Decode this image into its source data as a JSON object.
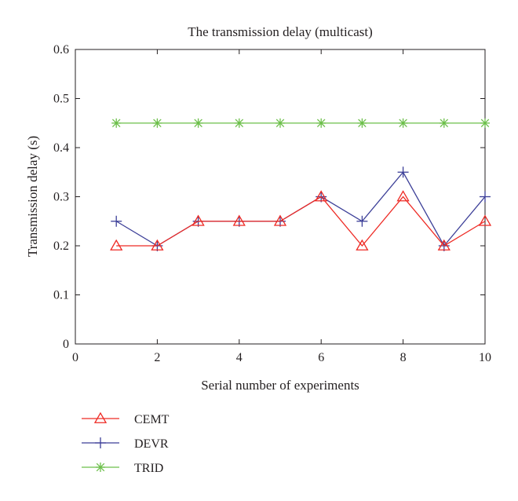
{
  "chart_data": {
    "type": "line",
    "title": "The transmission delay (multicast)",
    "xlabel": "Serial number of experiments",
    "ylabel": "Transmission delay (s)",
    "xlim": [
      0,
      10
    ],
    "ylim": [
      0,
      0.6
    ],
    "xticks": [
      0,
      2,
      4,
      6,
      8,
      10
    ],
    "xtick_labels": [
      "0",
      "2",
      "4",
      "6",
      "8",
      "10"
    ],
    "yticks": [
      0,
      0.1,
      0.2,
      0.3,
      0.4,
      0.5,
      0.6
    ],
    "ytick_labels": [
      "0",
      "0.1",
      "0.2",
      "0.3",
      "0.4",
      "0.5",
      "0.6"
    ],
    "grid": false,
    "legend_position": "below",
    "x": [
      1,
      2,
      3,
      4,
      5,
      6,
      7,
      8,
      9,
      10
    ],
    "series": [
      {
        "name": "CEMT",
        "color": "#ee2a24",
        "marker": "triangle",
        "values": [
          0.2,
          0.2,
          0.25,
          0.25,
          0.25,
          0.3,
          0.2,
          0.3,
          0.2,
          0.25
        ]
      },
      {
        "name": "DEVR",
        "color": "#3c3f98",
        "marker": "plus",
        "values": [
          0.25,
          0.2,
          0.25,
          0.25,
          0.25,
          0.3,
          0.25,
          0.35,
          0.2,
          0.3
        ]
      },
      {
        "name": "TRID",
        "color": "#6cbf4a",
        "marker": "star",
        "values": [
          0.45,
          0.45,
          0.45,
          0.45,
          0.45,
          0.45,
          0.45,
          0.45,
          0.45,
          0.45
        ]
      }
    ]
  }
}
